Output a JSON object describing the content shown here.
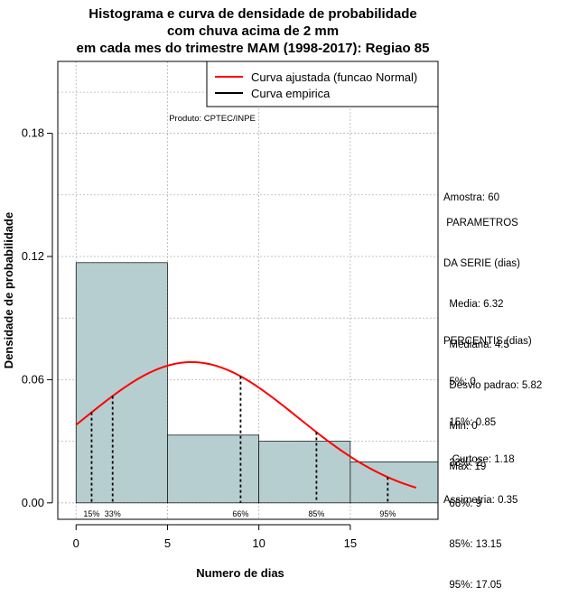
{
  "chart_data": {
    "type": "bar",
    "title": [
      "Histograma e curva de densidade de probabilidade",
      "com chuva acima de 2 mm",
      "em cada mes do trimestre MAM (1998-2017): Regiao 85"
    ],
    "xlabel": "Numero de dias",
    "ylabel": "Densidade de probabilidade",
    "xlim": [
      -1,
      19.8
    ],
    "ylim": [
      -0.008,
      0.215
    ],
    "xticks": [
      0,
      5,
      10,
      15
    ],
    "yticks": [
      0.0,
      0.06,
      0.12,
      0.18
    ],
    "ytick_labels": [
      "0.00",
      "0.06",
      "0.12",
      "0.18"
    ],
    "xgrid": [
      0,
      5,
      10,
      15
    ],
    "ygrid": [
      0.0,
      0.03,
      0.06,
      0.09,
      0.12,
      0.15,
      0.18,
      0.2
    ],
    "bins": [
      {
        "from": 0,
        "to": 5,
        "value": 0.117
      },
      {
        "from": 5,
        "to": 10,
        "value": 0.033
      },
      {
        "from": 10,
        "to": 15,
        "value": 0.03
      },
      {
        "from": 15,
        "to": 20,
        "value": 0.02
      }
    ],
    "normal_curve": {
      "mean": 6.32,
      "sd": 5.82,
      "from": 0,
      "to": 18.6
    },
    "percentile_lines": [
      {
        "label": "15%",
        "x": 0.85
      },
      {
        "label": "33%",
        "x": 2
      },
      {
        "label": "66%",
        "x": 9
      },
      {
        "label": "85%",
        "x": 13.15
      },
      {
        "label": "95%",
        "x": 17.05
      }
    ],
    "legend": {
      "position": "top-right",
      "entries": [
        {
          "label": "Curva ajustada (funcao Normal)",
          "color": "#ff0000"
        },
        {
          "label": "Curva empirica",
          "color": "#000000"
        }
      ]
    },
    "source": "Produto: CPTEC/INPE",
    "colors": {
      "bar": "#b6cecf",
      "curve": "#ff0000",
      "grid": "#b4b4b4"
    }
  },
  "stats": {
    "amostra": "Amostra: 60",
    "parametros": [
      " PARAMETROS",
      "DA SERIE (dias)",
      "  Media: 6.32",
      "  Mediana: 4.5",
      "  Desvio padrao: 5.82",
      "  Min: 0",
      "  Max: 19"
    ],
    "percentis": [
      "PERCENTIS (dias)",
      "  5%: 0",
      "  15%: 0.85",
      "  33%: 2",
      "  66%: 9",
      "  85%: 13.15",
      "  95%: 17.05"
    ],
    "forma": [
      "   Curtose: 1.18",
      "Assimetria: 0.35"
    ]
  }
}
